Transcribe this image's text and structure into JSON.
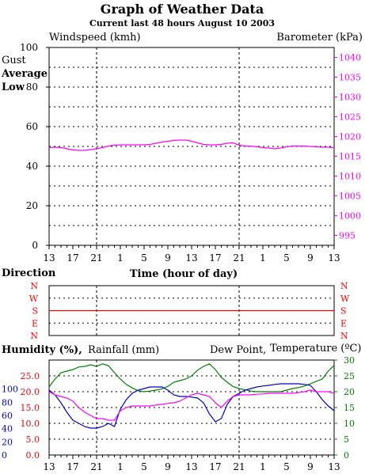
{
  "title": "Graph of Weather Data",
  "subtitle": "Current last 48 hours August 10 2003",
  "colors": {
    "title": "#00008b",
    "red": "#ff0000",
    "blue": "#0000cc",
    "green": "#008000",
    "magenta": "#ff00ff",
    "grid": "#000000"
  },
  "time_ticks": [
    "13",
    "17",
    "21",
    "1",
    "5",
    "9",
    "13",
    "17",
    "21",
    "1",
    "5",
    "9",
    "13"
  ],
  "chart_data": [
    {
      "type": "line",
      "ylabel": "Windspeed (kmh)",
      "y2label": "Barometer (kPa)",
      "xlabel": "Time (hour of day)",
      "legend": [
        "Gust",
        "Average",
        "Low"
      ],
      "ylim": [
        0,
        100
      ],
      "yticks": [
        0,
        20,
        40,
        60,
        80,
        100
      ],
      "y2lim": [
        992.5,
        1042.5
      ],
      "y2ticks": [
        995,
        1000,
        1005,
        1010,
        1015,
        1020,
        1025,
        1030,
        1035,
        1040
      ],
      "x": [
        0,
        1,
        2,
        3,
        4,
        5,
        6,
        7,
        8,
        9,
        10,
        11,
        12,
        13,
        14,
        15,
        16,
        17,
        18,
        19,
        20,
        21,
        22,
        23,
        24,
        25,
        26,
        27,
        28,
        29,
        30,
        31,
        32,
        33,
        34,
        35,
        36,
        37,
        38,
        39,
        40,
        41,
        42,
        43,
        44,
        45,
        46,
        47,
        48
      ],
      "series": [
        {
          "name": "Barometer (kPa)",
          "axis": "right",
          "values": [
            1017.2,
            1017.3,
            1017.2,
            1016.9,
            1016.6,
            1016.5,
            1016.5,
            1016.7,
            1016.9,
            1017.2,
            1017.6,
            1017.8,
            1017.9,
            1017.9,
            1017.9,
            1017.9,
            1017.9,
            1018.0,
            1018.3,
            1018.6,
            1018.8,
            1019.0,
            1019.1,
            1019.1,
            1018.8,
            1018.4,
            1018.0,
            1017.9,
            1017.9,
            1018.0,
            1018.3,
            1018.4,
            1017.8,
            1017.6,
            1017.6,
            1017.4,
            1017.2,
            1017.1,
            1016.9,
            1017.1,
            1017.4,
            1017.6,
            1017.6,
            1017.6,
            1017.5,
            1017.4,
            1017.3,
            1017.3,
            1017.2
          ]
        }
      ]
    },
    {
      "type": "line",
      "ylabel": "Direction",
      "ycategories": [
        "N",
        "W",
        "S",
        "E",
        "N"
      ],
      "series": [
        {
          "name": "Direction",
          "values": [
            "S",
            "S",
            "S",
            "S",
            "S",
            "S",
            "S",
            "S",
            "S",
            "S",
            "S",
            "S",
            "S",
            "S",
            "S",
            "S",
            "S",
            "S",
            "S",
            "S",
            "S",
            "S",
            "S",
            "S",
            "S",
            "S",
            "S",
            "S",
            "S",
            "S",
            "S",
            "S",
            "S",
            "S",
            "S",
            "S",
            "S",
            "S",
            "S",
            "S",
            "S",
            "S",
            "S",
            "S",
            "S",
            "S",
            "S",
            "S",
            "S"
          ]
        }
      ]
    },
    {
      "type": "line",
      "ylabel": "Humidity (%),",
      "y2label": "Rainfall (mm)",
      "y3label": "Dew Point,",
      "y4label": "Temperature (ºC)",
      "humidity_ticks": [
        0,
        20,
        40,
        60,
        80,
        100
      ],
      "rainfall_ticks": [
        "0.0",
        "5.0",
        "10.0",
        "15.0",
        "20.0",
        "25.0"
      ],
      "temperature_ticks": [
        0,
        5,
        10,
        15,
        20,
        25,
        30
      ],
      "ylim": [
        0,
        30
      ],
      "x": [
        0,
        1,
        2,
        3,
        4,
        5,
        6,
        7,
        8,
        9,
        10,
        11,
        12,
        13,
        14,
        15,
        16,
        17,
        18,
        19,
        20,
        21,
        22,
        23,
        24,
        25,
        26,
        27,
        28,
        29,
        30,
        31,
        32,
        33,
        34,
        35,
        36,
        37,
        38,
        39,
        40,
        41,
        42,
        43,
        44,
        45,
        46,
        47,
        48
      ],
      "series": [
        {
          "name": "Temperature (ºC)",
          "values": [
            21.5,
            24.0,
            26.0,
            26.5,
            27.0,
            27.8,
            28.0,
            28.5,
            28.0,
            28.8,
            28.2,
            26.0,
            24.0,
            22.3,
            21.2,
            20.3,
            20.0,
            20.2,
            20.5,
            20.9,
            21.7,
            23.0,
            23.5,
            24.0,
            25.0,
            26.8,
            28.0,
            28.8,
            27.0,
            24.5,
            23.0,
            21.6,
            21.0,
            20.6,
            20.2,
            20.0,
            20.0,
            20.0,
            20.0,
            20.0,
            20.5,
            21.0,
            21.3,
            21.8,
            22.5,
            23.3,
            24.0,
            26.5,
            28.3
          ]
        },
        {
          "name": "Humidity",
          "values": [
            20.5,
            19.0,
            16.5,
            13.5,
            11.0,
            10.0,
            9.0,
            8.5,
            8.5,
            9.0,
            10.0,
            9.0,
            14.5,
            17.5,
            19.5,
            20.5,
            21.0,
            21.5,
            21.5,
            21.5,
            20.5,
            19.0,
            18.5,
            18.5,
            18.3,
            18.0,
            16.5,
            13.0,
            10.5,
            11.5,
            16.0,
            18.5,
            19.5,
            20.5,
            21.0,
            21.5,
            21.8,
            22.0,
            22.3,
            22.5,
            22.5,
            22.5,
            22.5,
            22.3,
            22.0,
            20.0,
            17.5,
            15.5,
            14.0
          ]
        },
        {
          "name": "Dew Point,",
          "values": [
            20.0,
            19.0,
            18.5,
            18.0,
            17.0,
            15.0,
            13.5,
            12.5,
            11.5,
            11.5,
            11.0,
            11.0,
            14.0,
            15.0,
            15.5,
            15.5,
            15.5,
            15.5,
            15.8,
            16.0,
            16.3,
            16.5,
            17.0,
            18.0,
            19.0,
            19.5,
            19.0,
            18.5,
            16.5,
            15.0,
            17.0,
            18.5,
            19.0,
            19.0,
            19.0,
            19.2,
            19.3,
            19.5,
            19.5,
            19.5,
            19.5,
            19.5,
            19.7,
            20.0,
            20.5,
            20.0,
            20.0,
            20.0,
            19.5
          ]
        }
      ]
    }
  ]
}
